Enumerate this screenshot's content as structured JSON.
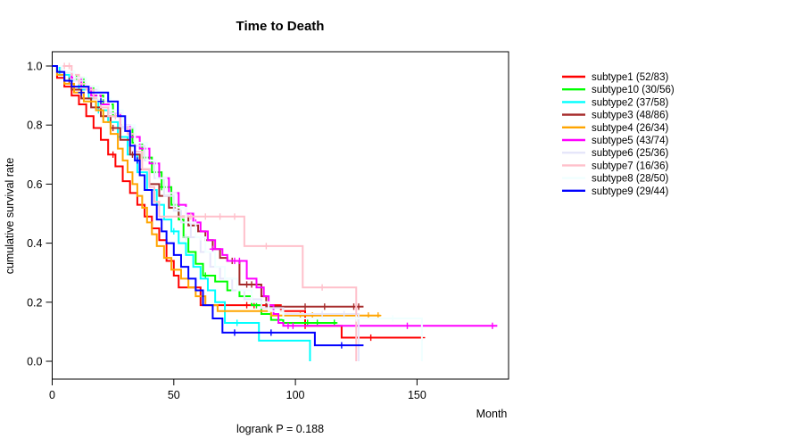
{
  "window_title": "Time to Death",
  "chart_data": {
    "type": "line",
    "variant": "kaplan-meier-step",
    "title": "Time to Death",
    "xlabel": "Month",
    "ylabel": "cumulative survival rate",
    "annotation": "logrank P = 0.188",
    "x_ticks": [
      "0",
      "50",
      "100",
      "150"
    ],
    "y_ticks": [
      "0.0",
      "0.2",
      "0.4",
      "0.6",
      "0.8",
      "1.0"
    ],
    "xlim": [
      0,
      187
    ],
    "ylim": [
      0,
      1
    ],
    "grid": false,
    "legend_position": "right-outside",
    "axis_color": "#000000",
    "background_color": "#ffffff",
    "series": [
      {
        "label": "subtype1 (52/83)",
        "name": "subtype1",
        "counts": "52/83",
        "color": "#FF0000",
        "steps": [
          [
            0,
            1.0
          ],
          [
            2,
            0.96
          ],
          [
            5,
            0.93
          ],
          [
            8,
            0.9
          ],
          [
            11,
            0.87
          ],
          [
            14,
            0.83
          ],
          [
            17,
            0.79
          ],
          [
            20,
            0.75
          ],
          [
            23,
            0.7
          ],
          [
            26,
            0.66
          ],
          [
            29,
            0.61
          ],
          [
            32,
            0.57
          ],
          [
            35,
            0.53
          ],
          [
            38,
            0.49
          ],
          [
            41,
            0.45
          ],
          [
            44,
            0.41
          ],
          [
            47,
            0.34
          ],
          [
            50,
            0.29
          ],
          [
            52,
            0.25
          ],
          [
            61,
            0.19
          ],
          [
            94,
            0.17
          ],
          [
            104,
            0.12
          ],
          [
            119,
            0.08
          ],
          [
            152,
            0.08
          ]
        ],
        "censors": [
          [
            25,
            0.7
          ],
          [
            80,
            0.19
          ],
          [
            83,
            0.19
          ],
          [
            104,
            0.12
          ],
          [
            131,
            0.08
          ],
          [
            152,
            0.08
          ]
        ]
      },
      {
        "label": "subtype10 (30/56)",
        "name": "subtype10",
        "counts": "30/56",
        "color": "#00FF00",
        "steps": [
          [
            0,
            1.0
          ],
          [
            4,
            0.98
          ],
          [
            9,
            0.96
          ],
          [
            13,
            0.93
          ],
          [
            17,
            0.9
          ],
          [
            21,
            0.87
          ],
          [
            25,
            0.83
          ],
          [
            29,
            0.79
          ],
          [
            33,
            0.74
          ],
          [
            37,
            0.69
          ],
          [
            41,
            0.64
          ],
          [
            45,
            0.59
          ],
          [
            49,
            0.53
          ],
          [
            52,
            0.48
          ],
          [
            54,
            0.42
          ],
          [
            56,
            0.37
          ],
          [
            59,
            0.33
          ],
          [
            62,
            0.29
          ],
          [
            67,
            0.27
          ],
          [
            72,
            0.24
          ],
          [
            77,
            0.22
          ],
          [
            82,
            0.19
          ],
          [
            86,
            0.16
          ],
          [
            90,
            0.14
          ],
          [
            95,
            0.13
          ],
          [
            117,
            0.13
          ]
        ],
        "censors": [
          [
            10,
            0.96
          ],
          [
            45,
            0.59
          ],
          [
            63,
            0.29
          ],
          [
            84,
            0.19
          ],
          [
            105,
            0.13
          ],
          [
            109,
            0.13
          ],
          [
            116,
            0.13
          ]
        ]
      },
      {
        "label": "subtype2 (37/58)",
        "name": "subtype2",
        "counts": "37/58",
        "color": "#00FFFF",
        "steps": [
          [
            0,
            1.0
          ],
          [
            3,
            0.97
          ],
          [
            7,
            0.95
          ],
          [
            11,
            0.92
          ],
          [
            15,
            0.89
          ],
          [
            19,
            0.85
          ],
          [
            23,
            0.81
          ],
          [
            27,
            0.76
          ],
          [
            31,
            0.7
          ],
          [
            35,
            0.64
          ],
          [
            39,
            0.58
          ],
          [
            43,
            0.53
          ],
          [
            46,
            0.48
          ],
          [
            49,
            0.44
          ],
          [
            52,
            0.4
          ],
          [
            55,
            0.36
          ],
          [
            58,
            0.32
          ],
          [
            61,
            0.28
          ],
          [
            64,
            0.24
          ],
          [
            67,
            0.2
          ],
          [
            71,
            0.13
          ],
          [
            85,
            0.07
          ],
          [
            106,
            0.0
          ]
        ],
        "censors": [
          [
            19,
            0.85
          ],
          [
            50,
            0.44
          ],
          [
            76,
            0.13
          ]
        ]
      },
      {
        "label": "subtype3 (48/86)",
        "name": "subtype3",
        "counts": "48/86",
        "color": "#A52A2A",
        "steps": [
          [
            0,
            1.0
          ],
          [
            2,
            0.98
          ],
          [
            5,
            0.95
          ],
          [
            8,
            0.92
          ],
          [
            12,
            0.89
          ],
          [
            16,
            0.86
          ],
          [
            20,
            0.83
          ],
          [
            24,
            0.79
          ],
          [
            28,
            0.75
          ],
          [
            32,
            0.7
          ],
          [
            36,
            0.65
          ],
          [
            40,
            0.6
          ],
          [
            44,
            0.56
          ],
          [
            48,
            0.52
          ],
          [
            52,
            0.49
          ],
          [
            56,
            0.46
          ],
          [
            60,
            0.44
          ],
          [
            63,
            0.41
          ],
          [
            66,
            0.38
          ],
          [
            69,
            0.35
          ],
          [
            72,
            0.34
          ],
          [
            77,
            0.26
          ],
          [
            86,
            0.22
          ],
          [
            88,
            0.185
          ],
          [
            128,
            0.185
          ]
        ],
        "censors": [
          [
            7,
            0.95
          ],
          [
            25,
            0.79
          ],
          [
            33,
            0.7
          ],
          [
            74,
            0.34
          ],
          [
            80,
            0.26
          ],
          [
            82,
            0.26
          ],
          [
            84,
            0.26
          ],
          [
            104,
            0.185
          ],
          [
            112,
            0.185
          ],
          [
            124,
            0.185
          ],
          [
            126,
            0.185
          ]
        ]
      },
      {
        "label": "subtype4 (26/34)",
        "name": "subtype4",
        "counts": "26/34",
        "color": "#FFA500",
        "steps": [
          [
            0,
            1.0
          ],
          [
            2,
            0.97
          ],
          [
            5,
            0.94
          ],
          [
            9,
            0.91
          ],
          [
            13,
            0.88
          ],
          [
            18,
            0.85
          ],
          [
            21,
            0.81
          ],
          [
            24,
            0.77
          ],
          [
            27,
            0.72
          ],
          [
            29,
            0.68
          ],
          [
            31,
            0.64
          ],
          [
            33,
            0.6
          ],
          [
            35,
            0.56
          ],
          [
            37,
            0.52
          ],
          [
            39,
            0.47
          ],
          [
            41,
            0.43
          ],
          [
            43,
            0.39
          ],
          [
            46,
            0.35
          ],
          [
            49,
            0.31
          ],
          [
            53,
            0.28
          ],
          [
            56,
            0.25
          ],
          [
            59,
            0.22
          ],
          [
            63,
            0.19
          ],
          [
            68,
            0.17
          ],
          [
            90,
            0.155
          ],
          [
            135,
            0.155
          ]
        ],
        "censors": [
          [
            102,
            0.155
          ],
          [
            107,
            0.155
          ],
          [
            125,
            0.155
          ],
          [
            130,
            0.155
          ],
          [
            134,
            0.155
          ]
        ]
      },
      {
        "label": "subtype5 (43/74)",
        "name": "subtype5",
        "counts": "43/74",
        "color": "#FF00FF",
        "steps": [
          [
            0,
            1.0
          ],
          [
            4,
            0.98
          ],
          [
            8,
            0.96
          ],
          [
            12,
            0.93
          ],
          [
            16,
            0.9
          ],
          [
            20,
            0.87
          ],
          [
            24,
            0.84
          ],
          [
            28,
            0.8
          ],
          [
            32,
            0.76
          ],
          [
            36,
            0.72
          ],
          [
            40,
            0.67
          ],
          [
            44,
            0.62
          ],
          [
            48,
            0.57
          ],
          [
            52,
            0.53
          ],
          [
            55,
            0.5
          ],
          [
            58,
            0.47
          ],
          [
            61,
            0.44
          ],
          [
            64,
            0.41
          ],
          [
            67,
            0.38
          ],
          [
            70,
            0.36
          ],
          [
            72,
            0.34
          ],
          [
            80,
            0.28
          ],
          [
            84,
            0.25
          ],
          [
            87,
            0.22
          ],
          [
            89,
            0.19
          ],
          [
            91,
            0.16
          ],
          [
            93,
            0.13
          ],
          [
            95,
            0.12
          ],
          [
            183,
            0.12
          ]
        ],
        "censors": [
          [
            59,
            0.47
          ],
          [
            66,
            0.38
          ],
          [
            75,
            0.34
          ],
          [
            77,
            0.34
          ],
          [
            97,
            0.12
          ],
          [
            99,
            0.12
          ],
          [
            146,
            0.12
          ],
          [
            181,
            0.12
          ]
        ]
      },
      {
        "label": "subtype6 (25/36)",
        "name": "subtype6",
        "counts": "25/36",
        "color": "#E6E6FA",
        "steps": [
          [
            0,
            1.0
          ],
          [
            4,
            0.98
          ],
          [
            9,
            0.95
          ],
          [
            14,
            0.92
          ],
          [
            19,
            0.88
          ],
          [
            24,
            0.84
          ],
          [
            29,
            0.79
          ],
          [
            34,
            0.73
          ],
          [
            38,
            0.68
          ],
          [
            42,
            0.62
          ],
          [
            46,
            0.56
          ],
          [
            50,
            0.51
          ],
          [
            53,
            0.47
          ],
          [
            57,
            0.42
          ],
          [
            61,
            0.37
          ],
          [
            65,
            0.32
          ],
          [
            69,
            0.28
          ],
          [
            74,
            0.24
          ],
          [
            79,
            0.21
          ],
          [
            86,
            0.18
          ],
          [
            95,
            0.16
          ],
          [
            126,
            0.0
          ]
        ],
        "censors": [
          [
            55,
            0.42
          ],
          [
            111,
            0.16
          ],
          [
            120,
            0.16
          ]
        ]
      },
      {
        "label": "subtype7 (16/36)",
        "name": "subtype7",
        "counts": "16/36",
        "color": "#FFC0CB",
        "steps": [
          [
            0,
            1.0
          ],
          [
            8,
            0.97
          ],
          [
            11,
            0.94
          ],
          [
            14,
            0.92
          ],
          [
            17,
            0.89
          ],
          [
            20,
            0.86
          ],
          [
            23,
            0.83
          ],
          [
            28,
            0.8
          ],
          [
            31,
            0.77
          ],
          [
            34,
            0.71
          ],
          [
            37,
            0.65
          ],
          [
            40,
            0.59
          ],
          [
            42,
            0.54
          ],
          [
            44,
            0.49
          ],
          [
            79,
            0.39
          ],
          [
            103,
            0.25
          ],
          [
            125,
            0.0
          ]
        ],
        "censors": [
          [
            5,
            1.0
          ],
          [
            7,
            1.0
          ],
          [
            26,
            0.83
          ],
          [
            57,
            0.49
          ],
          [
            63,
            0.49
          ],
          [
            69,
            0.49
          ],
          [
            75,
            0.49
          ],
          [
            88,
            0.39
          ],
          [
            111,
            0.25
          ]
        ]
      },
      {
        "label": "subtype8 (28/50)",
        "name": "subtype8",
        "counts": "28/50",
        "color": "#F0FFFF",
        "steps": [
          [
            0,
            1.0
          ],
          [
            4,
            0.98
          ],
          [
            9,
            0.96
          ],
          [
            14,
            0.93
          ],
          [
            19,
            0.89
          ],
          [
            24,
            0.85
          ],
          [
            29,
            0.8
          ],
          [
            34,
            0.74
          ],
          [
            39,
            0.68
          ],
          [
            43,
            0.62
          ],
          [
            47,
            0.57
          ],
          [
            51,
            0.52
          ],
          [
            55,
            0.47
          ],
          [
            59,
            0.42
          ],
          [
            63,
            0.37
          ],
          [
            67,
            0.32
          ],
          [
            71,
            0.28
          ],
          [
            76,
            0.24
          ],
          [
            82,
            0.2
          ],
          [
            89,
            0.17
          ],
          [
            95,
            0.145
          ],
          [
            152,
            0.0
          ]
        ],
        "censors": [
          [
            61,
            0.42
          ],
          [
            125,
            0.145
          ],
          [
            140,
            0.145
          ]
        ]
      },
      {
        "label": "subtype9 (29/44)",
        "name": "subtype9",
        "counts": "29/44",
        "color": "#0000FF",
        "steps": [
          [
            0,
            1.0
          ],
          [
            2,
            0.98
          ],
          [
            5,
            0.95
          ],
          [
            8,
            0.93
          ],
          [
            15,
            0.91
          ],
          [
            23,
            0.88
          ],
          [
            27,
            0.83
          ],
          [
            30,
            0.78
          ],
          [
            32,
            0.73
          ],
          [
            34,
            0.68
          ],
          [
            36,
            0.63
          ],
          [
            38,
            0.58
          ],
          [
            41,
            0.53
          ],
          [
            43,
            0.48
          ],
          [
            45,
            0.44
          ],
          [
            47,
            0.4
          ],
          [
            50,
            0.36
          ],
          [
            53,
            0.32
          ],
          [
            56,
            0.28
          ],
          [
            59,
            0.24
          ],
          [
            62,
            0.19
          ],
          [
            66,
            0.145
          ],
          [
            70,
            0.097
          ],
          [
            108,
            0.054
          ],
          [
            128,
            0.054
          ]
        ],
        "censors": [
          [
            12,
            0.91
          ],
          [
            20,
            0.88
          ],
          [
            35,
            0.68
          ],
          [
            75,
            0.097
          ],
          [
            90,
            0.097
          ],
          [
            119,
            0.054
          ]
        ]
      }
    ]
  }
}
